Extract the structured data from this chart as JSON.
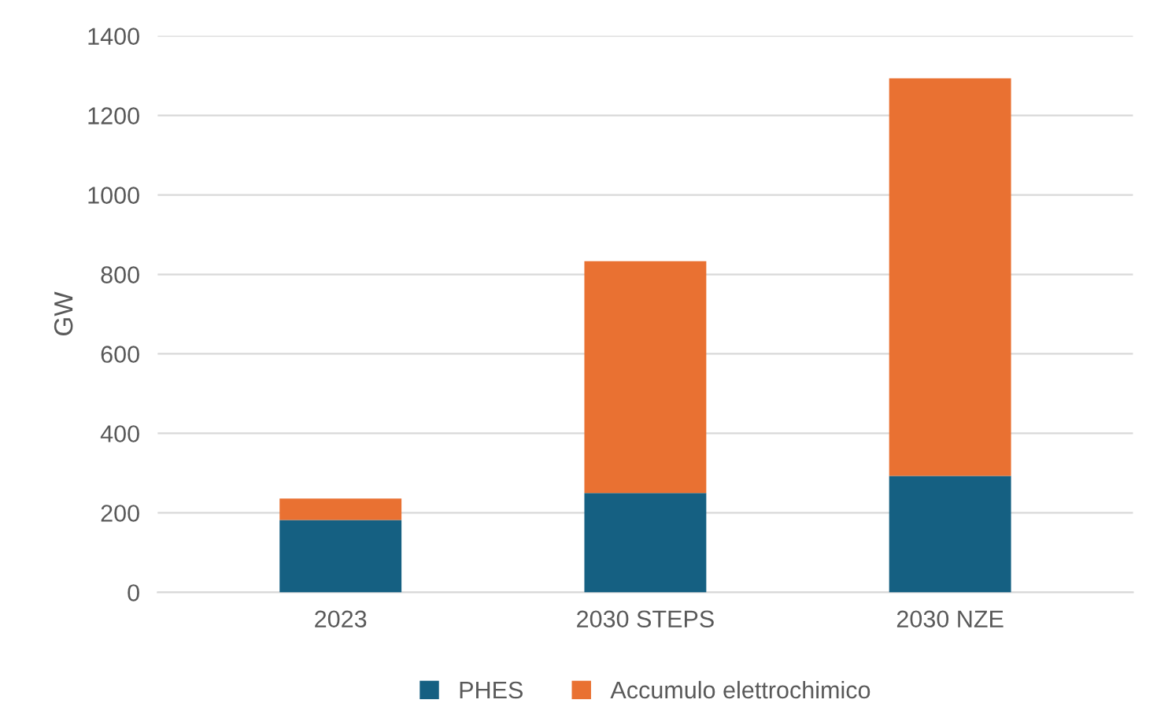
{
  "chart_data": {
    "type": "bar",
    "stacked": true,
    "ylabel": "GW",
    "categories": [
      "2023",
      "2030 STEPS",
      "2030 NZE"
    ],
    "series": [
      {
        "name": "PHES",
        "color": "#156082",
        "values": [
          182,
          250,
          293
        ]
      },
      {
        "name": "Accumulo elettrochimico",
        "color": "#e97132",
        "values": [
          54,
          583,
          1000
        ]
      }
    ],
    "ylim": [
      0,
      1400
    ],
    "yticks": [
      0,
      200,
      400,
      600,
      800,
      1000,
      1200,
      1400
    ],
    "grid": "y",
    "legend": "bottom"
  }
}
